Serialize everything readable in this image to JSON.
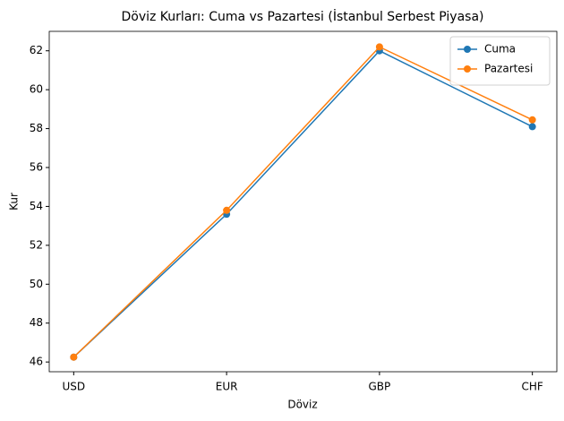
{
  "chart_data": {
    "type": "line",
    "title": "Döviz Kurları: Cuma vs Pazartesi (İstanbul Serbest Piyasa)",
    "x_label": "Döviz",
    "y_label": "Kur",
    "categories": [
      "USD",
      "EUR",
      "GBP",
      "CHF"
    ],
    "series": [
      {
        "name": "Cuma",
        "color": "#1f77b4",
        "values": [
          46.25,
          53.6,
          62.0,
          58.1
        ]
      },
      {
        "name": "Pazartesi",
        "color": "#ff7f0e",
        "values": [
          46.25,
          53.8,
          62.2,
          58.45
        ]
      }
    ],
    "ylim": [
      45.5,
      63.0
    ],
    "yticks": [
      46,
      48,
      50,
      52,
      54,
      56,
      58,
      60,
      62
    ],
    "legend": "upper right"
  }
}
